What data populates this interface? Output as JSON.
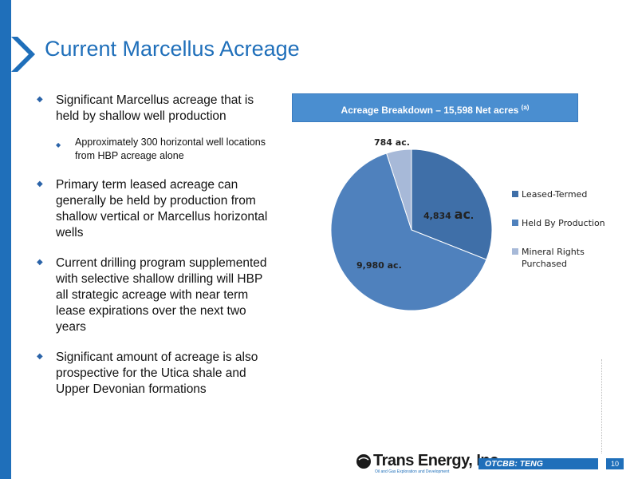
{
  "title": "Current Marcellus Acreage",
  "bullets": [
    "Significant Marcellus acreage that is held by shallow well production",
    "Primary term leased acreage can generally be held by production from shallow vertical or Marcellus horizontal wells",
    "Current drilling program supplemented with selective shallow drilling will HBP all strategic acreage with near term lease expirations over the next two years",
    "Significant amount of acreage is also prospective for the Utica shale and Upper Devonian formations"
  ],
  "sub_bullet": "Approximately 300 horizontal well locations from HBP acreage alone",
  "chart_header": {
    "text": "Acreage Breakdown – 15,598 Net acres",
    "note": "(a)"
  },
  "colors": {
    "accent": "#1f6fba",
    "header_fill": "#4a8ed0"
  },
  "chart_data": {
    "type": "pie",
    "title": "Acreage Breakdown – 15,598 Net acres (a)",
    "categories": [
      "Leased-Termed",
      "Held By Production",
      "Mineral Rights Purchased"
    ],
    "values": [
      4834,
      9980,
      784
    ],
    "colors": [
      "#3f6fa8",
      "#4f81bd",
      "#a7b9d8"
    ],
    "data_labels": [
      "4,834",
      "9,980 ac.",
      "784 ac."
    ],
    "data_label_unit_1": "ac",
    "legend": "right"
  },
  "footer": {
    "logo": "Trans Energy, Inc.",
    "logo_sub": "Oil and Gas Exploration and Development",
    "ticker": "OTCBB: TENG",
    "page": "10"
  }
}
